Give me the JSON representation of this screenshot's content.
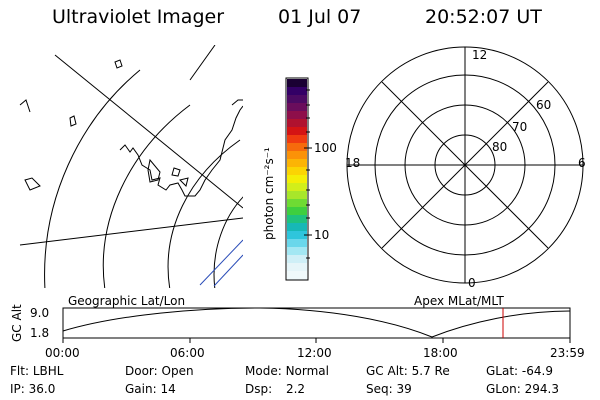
{
  "header": {
    "title": "Ultraviolet Imager",
    "date": "01 Jul 07",
    "time": "20:52:07 UT"
  },
  "colorbar": {
    "label": "photon cm⁻²s⁻¹",
    "ticks": [
      "100",
      "10"
    ],
    "colors": [
      "#1a0033",
      "#330066",
      "#4b0a63",
      "#6a0d5c",
      "#8e0f4a",
      "#b0122f",
      "#d41414",
      "#ef3b10",
      "#f66a0c",
      "#fb9208",
      "#fcb405",
      "#fbd403",
      "#f4ee06",
      "#d2ee1a",
      "#a8e62a",
      "#6fdb33",
      "#3ecf3f",
      "#1fc27e",
      "#17b8b6",
      "#2fc5dc",
      "#6ad7eb",
      "#a3e7f3",
      "#cfeff7",
      "#e6f5f9",
      "#f0f9fb"
    ]
  },
  "polar": {
    "mlt_labels": [
      "12",
      "18",
      "6",
      "0"
    ],
    "lat_labels": [
      "60",
      "70",
      "80"
    ]
  },
  "map": {
    "label": "Geographic Lat/Lon"
  },
  "apex": {
    "label": "Apex MLat/MLT"
  },
  "altitude_plot": {
    "axis_label": "GC Alt",
    "y_ticks": [
      "9.0",
      "1.8"
    ],
    "x_ticks": [
      "00:00",
      "06:00",
      "12:00",
      "18:00",
      "23:59"
    ],
    "line_color": "#000000",
    "marker_color": "#cc0000"
  },
  "status": [
    {
      "label": "Flt:",
      "value": "LBHL"
    },
    {
      "label": "Door:",
      "value": "Open"
    },
    {
      "label": "Mode:",
      "value": "Normal"
    },
    {
      "label": "GC Alt:",
      "value": "5.7 Re"
    },
    {
      "label": "GLat:",
      "value": "-64.9"
    },
    {
      "label": "IP:",
      "value": "36.0"
    },
    {
      "label": "Gain:",
      "value": "14"
    },
    {
      "label": "Dsp:",
      "value": "2.2"
    },
    {
      "label": "Seq:",
      "value": "39"
    },
    {
      "label": "GLon:",
      "value": "294.3"
    }
  ]
}
